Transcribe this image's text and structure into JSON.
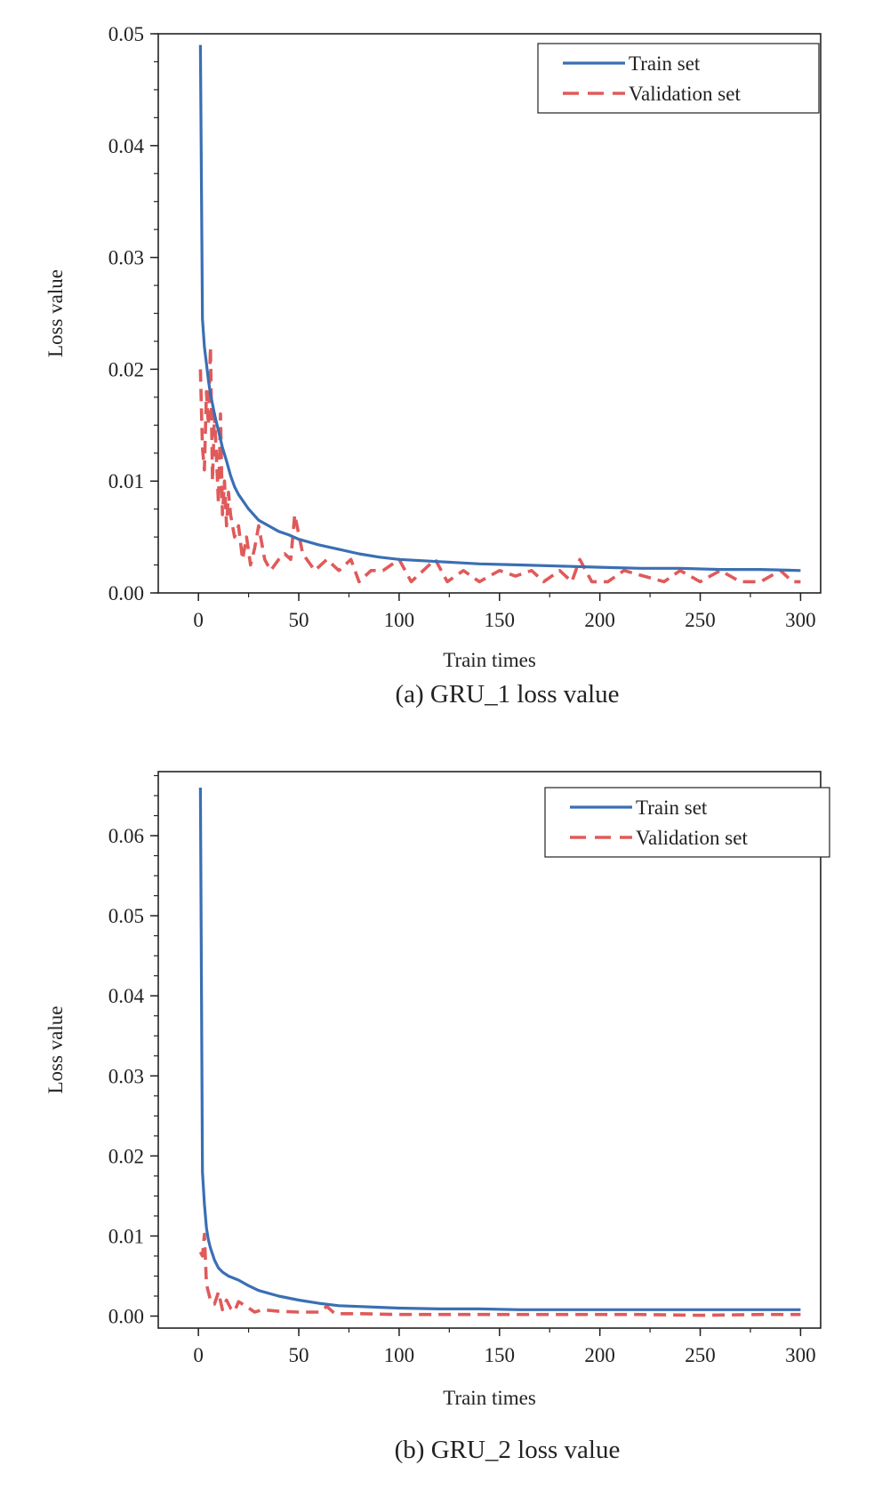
{
  "colors": {
    "train": "#3a6fb4",
    "validation": "#e05a5a",
    "axis": "#222222",
    "background": "#ffffff"
  },
  "chart_data": [
    {
      "type": "line",
      "caption": "(a) GRU_1 loss value",
      "xlabel": "Train times",
      "ylabel": "Loss value",
      "xlim": [
        -20,
        310
      ],
      "ylim": [
        0,
        0.05
      ],
      "xticks": [
        0,
        50,
        100,
        150,
        200,
        250,
        300
      ],
      "yticks": [
        0.0,
        0.01,
        0.02,
        0.03,
        0.04,
        0.05
      ],
      "ytick_decimals": 2,
      "yminor_step": 0.0025,
      "xminor_step": 25,
      "grid": false,
      "legend_position": "top-right",
      "series": [
        {
          "name": "Train set",
          "style": "solid",
          "x": [
            1,
            2,
            3,
            4,
            5,
            6,
            8,
            10,
            12,
            14,
            16,
            18,
            20,
            25,
            30,
            35,
            40,
            45,
            50,
            60,
            70,
            80,
            90,
            100,
            120,
            140,
            160,
            180,
            200,
            220,
            240,
            260,
            280,
            300
          ],
          "y": [
            0.049,
            0.0245,
            0.022,
            0.0205,
            0.019,
            0.0178,
            0.016,
            0.0145,
            0.013,
            0.0118,
            0.0105,
            0.0095,
            0.0088,
            0.0075,
            0.0065,
            0.006,
            0.0055,
            0.0052,
            0.0048,
            0.0043,
            0.0039,
            0.0035,
            0.0032,
            0.003,
            0.0028,
            0.0026,
            0.0025,
            0.0024,
            0.0023,
            0.0022,
            0.0022,
            0.0021,
            0.0021,
            0.002
          ]
        },
        {
          "name": "Validation set",
          "style": "dashed",
          "x": [
            1,
            2,
            3,
            4,
            5,
            6,
            7,
            8,
            9,
            10,
            11,
            12,
            13,
            14,
            15,
            16,
            18,
            20,
            22,
            24,
            26,
            28,
            30,
            33,
            36,
            40,
            43,
            46,
            48,
            52,
            58,
            64,
            70,
            76,
            80,
            86,
            92,
            100,
            106,
            112,
            118,
            124,
            132,
            140,
            150,
            158,
            166,
            172,
            180,
            186,
            190,
            196,
            204,
            212,
            222,
            232,
            240,
            250,
            260,
            270,
            280,
            290,
            296,
            300
          ],
          "y": [
            0.02,
            0.013,
            0.011,
            0.018,
            0.015,
            0.022,
            0.01,
            0.016,
            0.012,
            0.008,
            0.016,
            0.007,
            0.01,
            0.006,
            0.009,
            0.007,
            0.005,
            0.006,
            0.003,
            0.005,
            0.0025,
            0.004,
            0.006,
            0.003,
            0.002,
            0.003,
            0.0035,
            0.003,
            0.007,
            0.0035,
            0.002,
            0.003,
            0.002,
            0.003,
            0.001,
            0.002,
            0.002,
            0.003,
            0.001,
            0.002,
            0.003,
            0.001,
            0.002,
            0.001,
            0.002,
            0.0015,
            0.002,
            0.001,
            0.002,
            0.001,
            0.003,
            0.001,
            0.001,
            0.002,
            0.0015,
            0.001,
            0.002,
            0.001,
            0.002,
            0.001,
            0.001,
            0.002,
            0.001,
            0.001
          ]
        }
      ]
    },
    {
      "type": "line",
      "caption": "(b) GRU_2 loss value",
      "xlabel": "Train times",
      "ylabel": "Loss value",
      "xlim": [
        -20,
        310
      ],
      "ylim": [
        -0.0015,
        0.068
      ],
      "xticks": [
        0,
        50,
        100,
        150,
        200,
        250,
        300
      ],
      "yticks": [
        0.0,
        0.01,
        0.02,
        0.03,
        0.04,
        0.05,
        0.06
      ],
      "ytick_decimals": 2,
      "yminor_step": 0.0025,
      "xminor_step": 25,
      "grid": false,
      "legend_position": "top-right",
      "series": [
        {
          "name": "Train set",
          "style": "solid",
          "x": [
            1,
            2,
            3,
            4,
            5,
            6,
            8,
            10,
            12,
            15,
            20,
            25,
            30,
            40,
            50,
            60,
            70,
            80,
            90,
            100,
            120,
            140,
            160,
            180,
            200,
            220,
            240,
            260,
            280,
            300
          ],
          "y": [
            0.066,
            0.018,
            0.014,
            0.011,
            0.0095,
            0.0085,
            0.007,
            0.006,
            0.0055,
            0.005,
            0.0045,
            0.0038,
            0.0032,
            0.0025,
            0.002,
            0.0016,
            0.0013,
            0.0012,
            0.0011,
            0.001,
            0.0009,
            0.0009,
            0.0008,
            0.0008,
            0.0008,
            0.0008,
            0.0008,
            0.0008,
            0.0008,
            0.0008
          ]
        },
        {
          "name": "Validation set",
          "style": "dashed",
          "x": [
            1,
            2,
            3,
            4,
            5,
            6,
            8,
            10,
            12,
            14,
            16,
            18,
            20,
            24,
            28,
            32,
            40,
            50,
            60,
            64,
            68,
            80,
            100,
            130,
            160,
            190,
            220,
            250,
            280,
            300
          ],
          "y": [
            0.008,
            0.0075,
            0.0102,
            0.004,
            0.003,
            0.002,
            0.0015,
            0.003,
            0.0008,
            0.002,
            0.001,
            0.0006,
            0.0018,
            0.0012,
            0.0005,
            0.0008,
            0.0006,
            0.0005,
            0.0005,
            0.0012,
            0.0003,
            0.0003,
            0.0002,
            0.0002,
            0.0002,
            0.0002,
            0.0002,
            0.0001,
            0.0002,
            0.0002
          ]
        }
      ]
    }
  ]
}
